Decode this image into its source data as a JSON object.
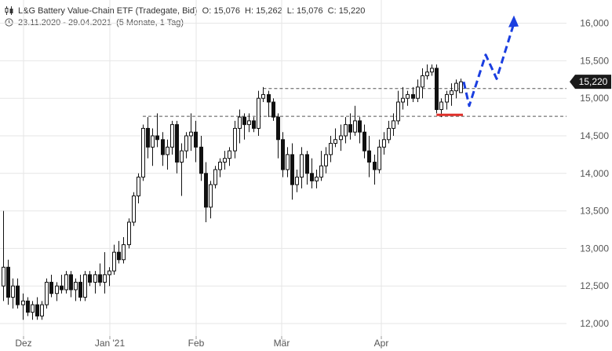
{
  "header": {
    "title": "L&G Battery Value-Chain ETF (Tradegate, Bid)",
    "open_label": "O:",
    "open": "15,076",
    "high_label": "H:",
    "high": "15,262",
    "low_label": "L:",
    "low": "15,076",
    "close_label": "C:",
    "close": "15,220",
    "range": "23.11.2020 - 29.04.2021",
    "period": "(5 Monate, 1 Tag)",
    "icons": [
      "candlestick-icon",
      "clock-icon"
    ]
  },
  "last_price": "15,220",
  "colors": {
    "accent_blue": "#1a3ee0",
    "support_red": "#e0302a",
    "price_badge": "#1a1a1a"
  },
  "chart_data": {
    "type": "candlestick",
    "title": "L&G Battery Value-Chain ETF (Tradegate, Bid)",
    "x_tick_labels": [
      "Dez",
      "Jan '21",
      "Feb",
      "Mär",
      "Apr"
    ],
    "y_tick_labels": [
      "12,000",
      "12,500",
      "13,000",
      "13,500",
      "14,000",
      "14,500",
      "15,000",
      "15,500",
      "16,000"
    ],
    "ylim": [
      11950,
      16200
    ],
    "grid": true,
    "y_axis_side": "right",
    "candles": [
      [
        12500,
        13500,
        12300,
        12750
      ],
      [
        12750,
        12850,
        12250,
        12350
      ],
      [
        12350,
        12600,
        12200,
        12500
      ],
      [
        12500,
        12600,
        12200,
        12250
      ],
      [
        12250,
        12400,
        12050,
        12300
      ],
      [
        12300,
        12350,
        12100,
        12150
      ],
      [
        12150,
        12300,
        12050,
        12250
      ],
      [
        12250,
        12350,
        12050,
        12100
      ],
      [
        12100,
        12300,
        12050,
        12250
      ],
      [
        12250,
        12600,
        12200,
        12550
      ],
      [
        12550,
        12650,
        12350,
        12400
      ],
      [
        12400,
        12550,
        12300,
        12500
      ],
      [
        12500,
        12650,
        12400,
        12450
      ],
      [
        12450,
        12700,
        12400,
        12650
      ],
      [
        12650,
        12700,
        12350,
        12450
      ],
      [
        12450,
        12600,
        12300,
        12550
      ],
      [
        12550,
        12650,
        12300,
        12350
      ],
      [
        12350,
        12700,
        12300,
        12650
      ],
      [
        12650,
        12700,
        12500,
        12550
      ],
      [
        12550,
        12700,
        12400,
        12650
      ],
      [
        12650,
        12800,
        12500,
        12550
      ],
      [
        12550,
        12950,
        12400,
        12650
      ],
      [
        12650,
        12750,
        12500,
        12700
      ],
      [
        12700,
        13050,
        12650,
        12950
      ],
      [
        12950,
        13100,
        12800,
        12850
      ],
      [
        12850,
        13150,
        12800,
        13050
      ],
      [
        13050,
        13400,
        13000,
        13350
      ],
      [
        13350,
        13750,
        13300,
        13700
      ],
      [
        13700,
        14000,
        13600,
        13950
      ],
      [
        13950,
        14650,
        13900,
        14600
      ],
      [
        14600,
        14750,
        14200,
        14350
      ],
      [
        14350,
        14600,
        14100,
        14500
      ],
      [
        14500,
        14800,
        14350,
        14450
      ],
      [
        14450,
        14550,
        14100,
        14250
      ],
      [
        14250,
        14450,
        14050,
        14350
      ],
      [
        14350,
        14700,
        14250,
        14650
      ],
      [
        14650,
        14700,
        14000,
        14150
      ],
      [
        14150,
        14400,
        13700,
        14300
      ],
      [
        14300,
        14550,
        14200,
        14500
      ],
      [
        14500,
        14800,
        14300,
        14550
      ],
      [
        14550,
        14700,
        14150,
        14350
      ],
      [
        14350,
        14500,
        13900,
        14000
      ],
      [
        14000,
        14150,
        13350,
        13550
      ],
      [
        13550,
        13900,
        13400,
        13850
      ],
      [
        13850,
        14100,
        13800,
        14050
      ],
      [
        14050,
        14200,
        13950,
        14150
      ],
      [
        14150,
        14300,
        14050,
        14200
      ],
      [
        14200,
        14350,
        14100,
        14300
      ],
      [
        14300,
        14700,
        14200,
        14600
      ],
      [
        14600,
        14850,
        14400,
        14750
      ],
      [
        14750,
        14800,
        14450,
        14650
      ],
      [
        14650,
        14800,
        14550,
        14700
      ],
      [
        14700,
        14750,
        14550,
        14600
      ],
      [
        14600,
        15100,
        14500,
        15000
      ],
      [
        15000,
        15150,
        14950,
        15050
      ],
      [
        15050,
        15100,
        14750,
        14950
      ],
      [
        14950,
        15000,
        14700,
        14750
      ],
      [
        14750,
        14800,
        14200,
        14450
      ],
      [
        14450,
        14550,
        13950,
        14050
      ],
      [
        14050,
        14350,
        13950,
        14250
      ],
      [
        14250,
        14400,
        13650,
        13850
      ],
      [
        13850,
        14050,
        13750,
        13950
      ],
      [
        13950,
        14350,
        13800,
        14250
      ],
      [
        14250,
        14300,
        13850,
        14000
      ],
      [
        14000,
        14200,
        13800,
        13900
      ],
      [
        13900,
        14050,
        13800,
        13950
      ],
      [
        13950,
        14300,
        13900,
        14100
      ],
      [
        14100,
        14350,
        14000,
        14250
      ],
      [
        14250,
        14500,
        14150,
        14400
      ],
      [
        14400,
        14600,
        14350,
        14450
      ],
      [
        14450,
        14650,
        14300,
        14500
      ],
      [
        14500,
        14750,
        14400,
        14650
      ],
      [
        14650,
        14800,
        14450,
        14550
      ],
      [
        14550,
        14900,
        14500,
        14700
      ],
      [
        14700,
        14750,
        14400,
        14550
      ],
      [
        14550,
        14650,
        14200,
        14300
      ],
      [
        14300,
        14500,
        13950,
        14150
      ],
      [
        14150,
        14250,
        13850,
        14050
      ],
      [
        14050,
        14450,
        14000,
        14350
      ],
      [
        14350,
        14550,
        14250,
        14450
      ],
      [
        14450,
        14700,
        14400,
        14600
      ],
      [
        14600,
        14800,
        14500,
        14700
      ],
      [
        14700,
        15100,
        14650,
        14950
      ],
      [
        14950,
        15150,
        14850,
        15000
      ],
      [
        15000,
        15100,
        14900,
        15050
      ],
      [
        15050,
        15150,
        14950,
        15000
      ],
      [
        15000,
        15250,
        14950,
        15150
      ],
      [
        15150,
        15400,
        15000,
        15300
      ],
      [
        15300,
        15450,
        15250,
        15350
      ],
      [
        15350,
        15450,
        15300,
        15400
      ],
      [
        15400,
        15450,
        14800,
        14850
      ],
      [
        14850,
        15000,
        14750,
        14950
      ],
      [
        14950,
        15100,
        14850,
        15050
      ],
      [
        15050,
        15200,
        14900,
        15100
      ],
      [
        15100,
        15250,
        15000,
        15200
      ],
      [
        15076,
        15262,
        15076,
        15220
      ]
    ],
    "resistance_level": 15130,
    "support_level": 14760,
    "red_marker_level": 14780,
    "projection": [
      [
        15220,
        14900
      ],
      [
        14900,
        15580
      ],
      [
        15580,
        15260
      ],
      [
        15260,
        16000
      ]
    ]
  }
}
